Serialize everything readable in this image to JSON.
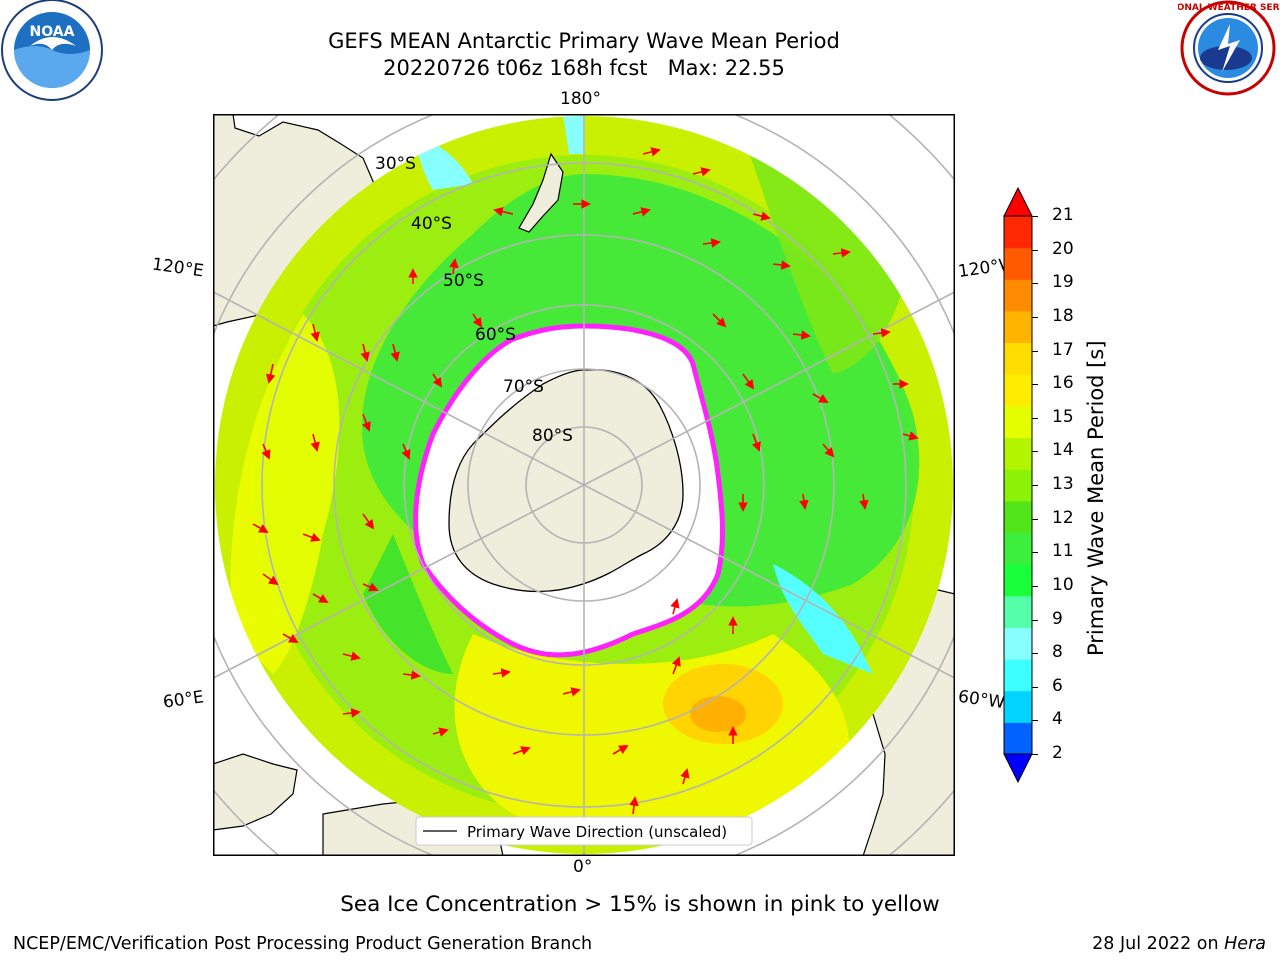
{
  "header": {
    "title_line1": "GEFS MEAN Antarctic Primary Wave Mean Period",
    "title_line2": "20220726 t06z 168h fcst   Max: 22.55"
  },
  "logos": {
    "left": {
      "name": "noaa-logo",
      "text": "NOAA"
    },
    "right": {
      "name": "nws-logo",
      "text": "NATIONAL WEATHER SERVICE"
    }
  },
  "map": {
    "projection": "south-polar-stereographic",
    "longitude_labels": {
      "top": "180°",
      "bottom": "0°",
      "upper_left": "120°E",
      "upper_right": "120°W",
      "lower_left": "60°E",
      "lower_right": "60°W"
    },
    "latitude_labels": [
      "30°S",
      "40°S",
      "50°S",
      "60°S",
      "70°S",
      "80°S"
    ],
    "legend": "Primary Wave Direction (unscaled)",
    "arrow_color": "#ff0000",
    "land_color": "#efeddc",
    "ice_edge_color": "#ff22ff"
  },
  "colorbar": {
    "label": "Primary Wave Mean Period [s]",
    "ticks": [
      "2",
      "4",
      "6",
      "8",
      "9",
      "10",
      "11",
      "12",
      "13",
      "14",
      "15",
      "16",
      "17",
      "18",
      "19",
      "20",
      "21"
    ],
    "colors": [
      "#0062ff",
      "#00d4ff",
      "#3cffff",
      "#88ffff",
      "#55ffaa",
      "#19ff3a",
      "#3cef3c",
      "#51e51a",
      "#8bf208",
      "#b3f500",
      "#e3ff00",
      "#ffed00",
      "#ffdd00",
      "#ffb400",
      "#ff8c00",
      "#ff5a00",
      "#ff2800"
    ],
    "under_color": "#0000ff",
    "over_color": "#ff0000"
  },
  "subnote": "Sea Ice Concentration > 15% is shown in pink to yellow",
  "footer": {
    "left": "NCEP/EMC/Verification Post Processing Product Generation Branch",
    "right_date": "28 Jul 2022 on ",
    "right_machine": "Hera"
  }
}
